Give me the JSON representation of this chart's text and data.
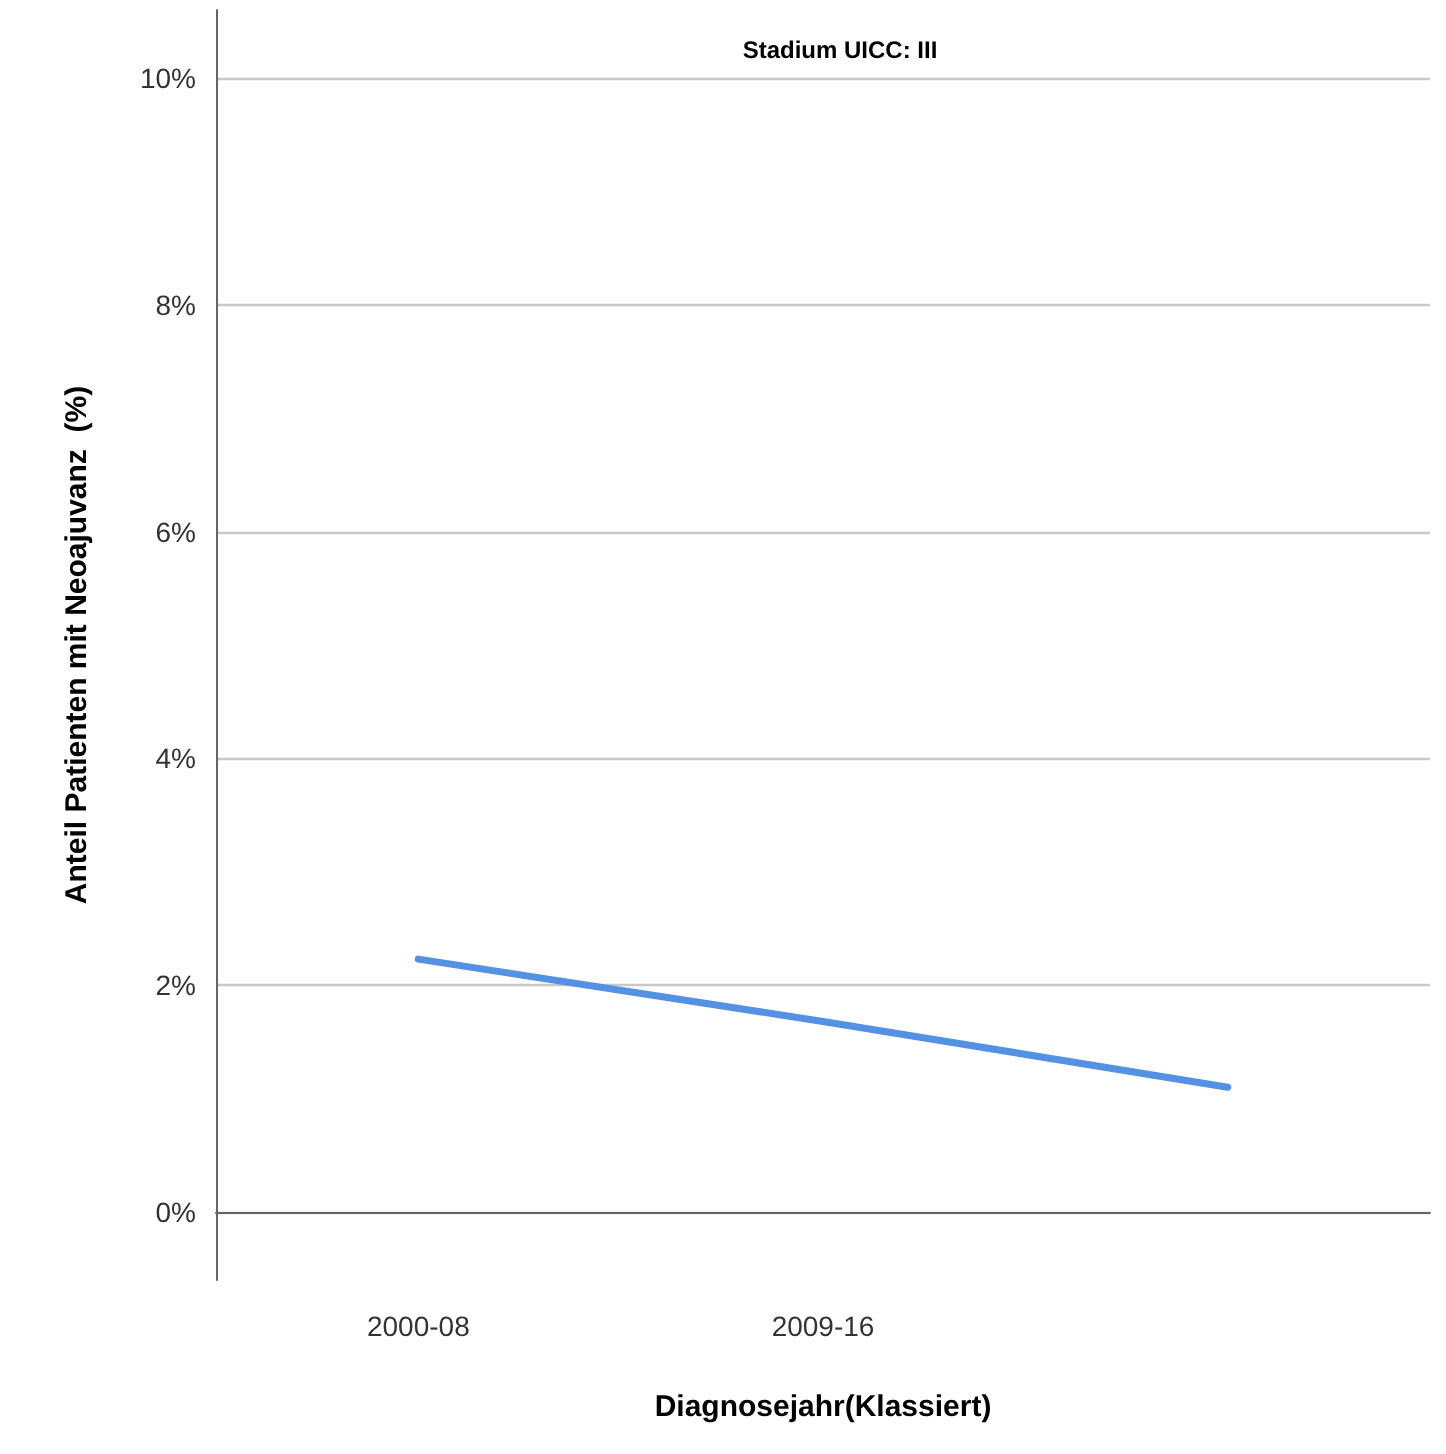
{
  "chart_data": {
    "type": "line",
    "title": "Stadium UICC: III",
    "xlabel": "Diagnosejahr(Klassiert)",
    "ylabel": "Anteil Patienten mit Neoajuvanz  (%)",
    "categories": [
      "2000-08",
      "2009-16",
      null
    ],
    "series": [
      {
        "color": "#5291e4",
        "values": [
          2.23,
          1.68,
          1.1
        ]
      }
    ],
    "ylim": [
      -0.6,
      10.6
    ],
    "yticks": [
      {
        "value": 0,
        "label": "0%"
      },
      {
        "value": 2,
        "label": "2%"
      },
      {
        "value": 4,
        "label": "4%"
      },
      {
        "value": 6,
        "label": "6%"
      },
      {
        "value": 8,
        "label": "8%"
      },
      {
        "value": 10,
        "label": "10%"
      }
    ],
    "grid": "y",
    "marker": "none"
  }
}
